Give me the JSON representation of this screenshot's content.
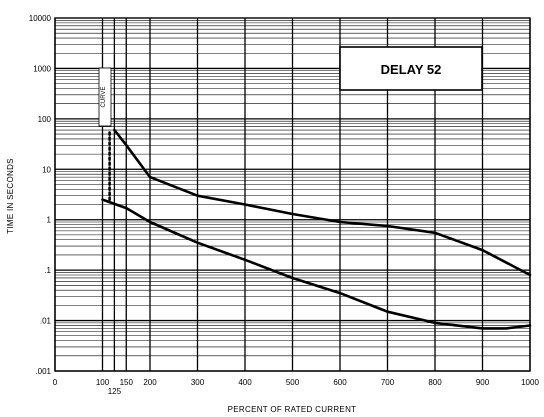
{
  "chart_data": {
    "type": "line",
    "title": "DELAY 52",
    "xlabel": "PERCENT OF RATED CURRENT",
    "ylabel": "TIME IN SECONDS",
    "x_scale": "linear",
    "y_scale": "log",
    "xlim": [
      0,
      1000
    ],
    "ylim": [
      0.001,
      10000
    ],
    "x_ticks": [
      {
        "value": 0,
        "label": "0"
      },
      {
        "value": 100,
        "label": "100"
      },
      {
        "value": 150,
        "label": "150"
      },
      {
        "value": 200,
        "label": "200"
      },
      {
        "value": 300,
        "label": "300"
      },
      {
        "value": 400,
        "label": "400"
      },
      {
        "value": 500,
        "label": "500"
      },
      {
        "value": 600,
        "label": "600"
      },
      {
        "value": 700,
        "label": "700"
      },
      {
        "value": 800,
        "label": "800"
      },
      {
        "value": 900,
        "label": "900"
      },
      {
        "value": 1000,
        "label": "1000"
      }
    ],
    "x_tick_extra": {
      "value": 125,
      "label": "125"
    },
    "y_ticks": [
      {
        "value": 0.001,
        "label": ".001"
      },
      {
        "value": 0.01,
        "label": ".01"
      },
      {
        "value": 0.1,
        "label": ".1"
      },
      {
        "value": 1,
        "label": "1"
      },
      {
        "value": 10,
        "label": "10"
      },
      {
        "value": 100,
        "label": "100"
      },
      {
        "value": 1000,
        "label": "1000"
      },
      {
        "value": 10000,
        "label": "10000"
      }
    ],
    "grid": true,
    "vertical_band_label": "CURVE",
    "series": [
      {
        "values": [
          [
            125,
            60
          ],
          [
            150,
            30
          ],
          [
            200,
            7
          ],
          [
            300,
            3
          ],
          [
            400,
            2
          ],
          [
            500,
            1.3
          ],
          [
            600,
            0.9
          ],
          [
            700,
            0.75
          ],
          [
            800,
            0.55
          ],
          [
            900,
            0.25
          ],
          [
            1000,
            0.08
          ]
        ]
      },
      {
        "values": [
          [
            100,
            2.5
          ],
          [
            150,
            1.7
          ],
          [
            200,
            0.9
          ],
          [
            300,
            0.35
          ],
          [
            400,
            0.16
          ],
          [
            500,
            0.07
          ],
          [
            600,
            0.035
          ],
          [
            700,
            0.015
          ],
          [
            800,
            0.009
          ],
          [
            900,
            0.007
          ],
          [
            950,
            0.007
          ],
          [
            1000,
            0.008
          ]
        ]
      },
      {
        "style": "dotted",
        "values": [
          [
            115,
            2.5
          ],
          [
            115,
            60
          ]
        ]
      }
    ]
  }
}
